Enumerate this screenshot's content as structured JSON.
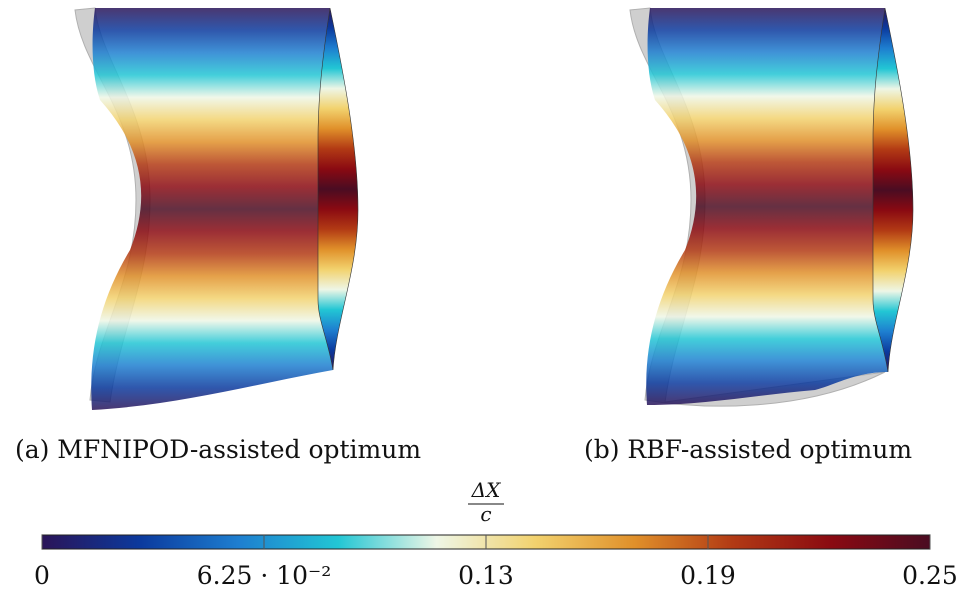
{
  "panels": [
    {
      "caption": "(a) MFNIPOD-assisted optimum"
    },
    {
      "caption": "(b) RBF-assisted optimum"
    }
  ],
  "colorbar": {
    "label_numerator": "ΔX",
    "label_denominator": "c",
    "lim": [
      0,
      0.25
    ],
    "ticks": [
      0,
      {
        "value": 0.0625,
        "label": "6.25 · 10⁻²"
      },
      {
        "value": 0.125,
        "label": "0.13"
      },
      {
        "value": 0.1875,
        "label": "0.19"
      },
      0.25
    ],
    "colors": [
      "#2a1458",
      "#0b3a9e",
      "#1e7fd0",
      "#22c6d4",
      "#eef6e6",
      "#f2d26e",
      "#e0902a",
      "#b23a14",
      "#8a0a12",
      "#4a0c22"
    ]
  }
}
